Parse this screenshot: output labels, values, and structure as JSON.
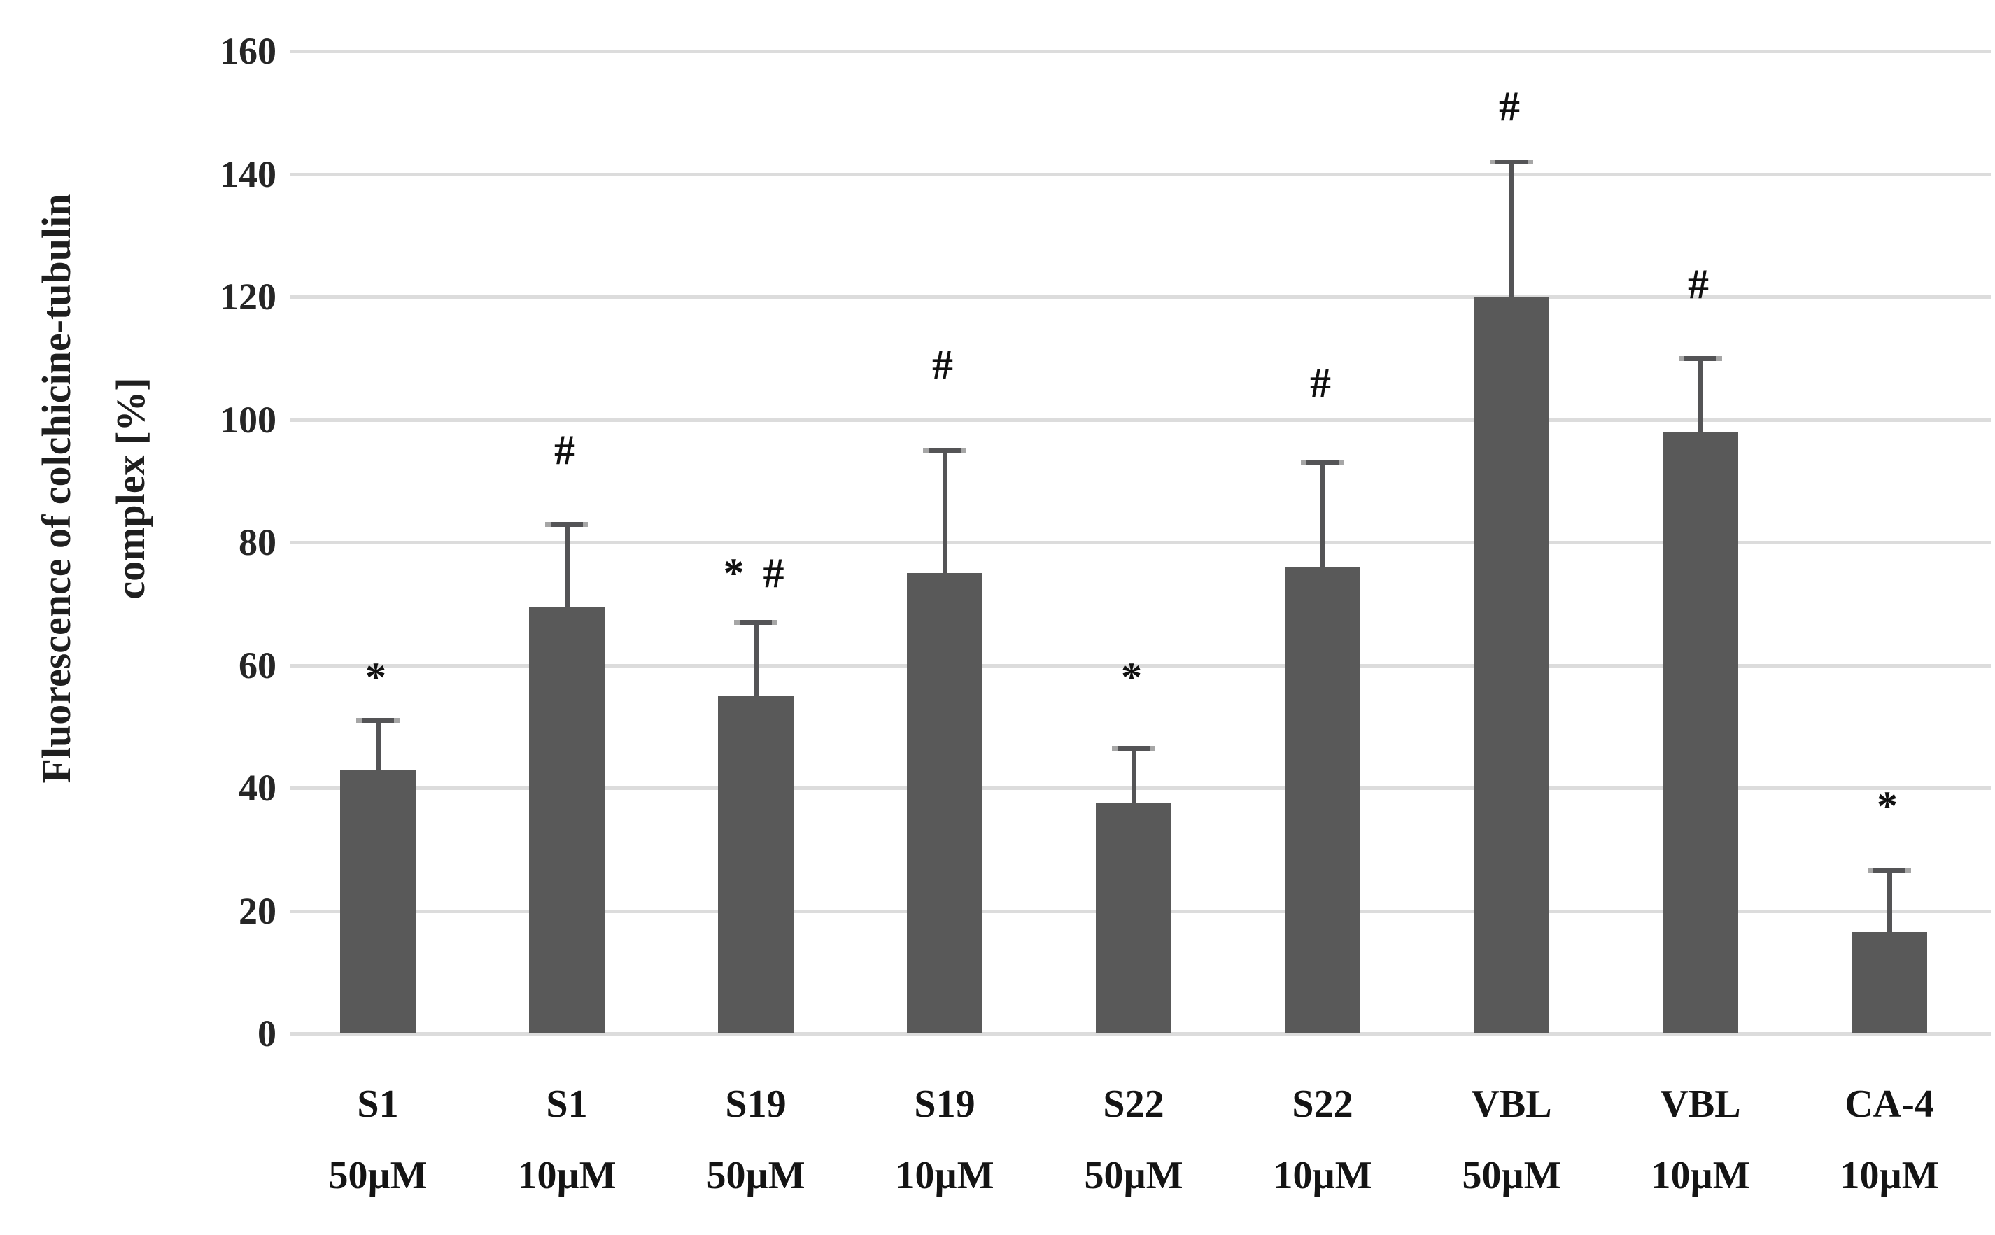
{
  "chart_data": {
    "type": "bar",
    "title": "",
    "ylabel": "Fluorescence of colchicine-tubulin complex [%]",
    "ylabel_lines": [
      "Fluorescence of colchicine-tubulin",
      "complex [%]"
    ],
    "xlabel": "",
    "ylim": [
      0,
      160
    ],
    "yticks": [
      0,
      20,
      40,
      60,
      80,
      100,
      120,
      140,
      160
    ],
    "grid": "horizontal-only",
    "legend": "none",
    "bar_color": "#595959",
    "error_bar_color": "#545456",
    "error_cap_tip_color": "#a6a6a6",
    "gridline_color": "#dcdcdc",
    "text_color": "#262626",
    "categories": [
      "S1 50µM",
      "S1 10µM",
      "S19 50µM",
      "S19 10µM",
      "S22 50µM",
      "S22 10µM",
      "VBL 50µM",
      "VBL 10µM",
      "CA-4 10µM"
    ],
    "category_lines": [
      [
        "S1",
        "50µM"
      ],
      [
        "S1",
        "10µM"
      ],
      [
        "S19",
        "50µM"
      ],
      [
        "S19",
        "10µM"
      ],
      [
        "S22",
        "50µM"
      ],
      [
        "S22",
        "10µM"
      ],
      [
        "VBL",
        "50µM"
      ],
      [
        "VBL",
        "10µM"
      ],
      [
        "CA-4",
        "10µM"
      ]
    ],
    "series": [
      {
        "name": "Fluorescence of colchicine-tubulin complex [%]",
        "values": [
          43,
          69.5,
          55,
          75,
          37.5,
          76,
          120,
          98,
          16.5
        ]
      }
    ],
    "error_bar_upper_tops": [
      51,
      83,
      67,
      95,
      46.5,
      93,
      142,
      110,
      26.5
    ],
    "significance_markers": [
      "*",
      "#",
      "* #",
      "#",
      "*",
      "#",
      "#",
      "#",
      "*"
    ],
    "significance_marker_y_values": [
      58,
      95,
      75,
      109,
      58,
      106,
      151,
      122,
      37
    ]
  }
}
